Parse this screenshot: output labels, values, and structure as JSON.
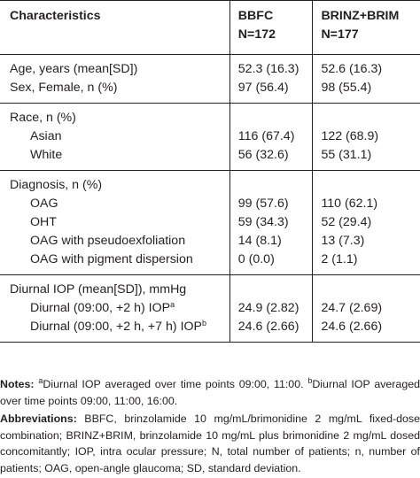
{
  "table": {
    "headers": {
      "characteristics": "Characteristics",
      "bbfc": [
        "BBFC",
        "N=172"
      ],
      "brinz": [
        "BRINZ+BRIM",
        "N=177"
      ]
    },
    "groups": [
      {
        "rows": [
          {
            "label": "Age, years (mean[SD])",
            "bbfc": "52.3 (16.3)",
            "brinz": "52.6 (16.3)"
          },
          {
            "label": "Sex, Female, n (%)",
            "bbfc": "97 (56.4)",
            "brinz": "98 (55.4)"
          }
        ]
      },
      {
        "title": "Race, n (%)",
        "rows": [
          {
            "label": "Asian",
            "bbfc": "116 (67.4)",
            "brinz": "122 (68.9)"
          },
          {
            "label": "White",
            "bbfc": "56 (32.6)",
            "brinz": "55 (31.1)"
          }
        ]
      },
      {
        "title": "Diagnosis, n (%)",
        "rows": [
          {
            "label": "OAG",
            "bbfc": "99 (57.6)",
            "brinz": "110 (62.1)"
          },
          {
            "label": "OHT",
            "bbfc": "59 (34.3)",
            "brinz": "52 (29.4)"
          },
          {
            "label": "OAG with pseudoexfoliation",
            "bbfc": "14 (8.1)",
            "brinz": "13 (7.3)"
          },
          {
            "label": "OAG with pigment dispersion",
            "bbfc": "0 (0.0)",
            "brinz": "2 (1.1)"
          }
        ]
      },
      {
        "title": "Diurnal IOP (mean[SD]), mmHg",
        "rows": [
          {
            "label": "Diurnal (09:00, +2 h) IOP",
            "sup": "a",
            "bbfc": "24.9 (2.82)",
            "brinz": "24.7 (2.69)"
          },
          {
            "label": "Diurnal (09:00, +2 h, +7 h) IOP",
            "sup": "b",
            "bbfc": "24.6 (2.66)",
            "brinz": "24.6 (2.66)"
          }
        ]
      }
    ]
  },
  "notes": {
    "notes_label": "Notes:",
    "note_a_sup": "a",
    "note_a": "Diurnal IOP averaged over time points 09:00, 11:00. ",
    "note_b_sup": "b",
    "note_b": "Diurnal IOP averaged over time points 09:00, 11:00, 16:00.",
    "abbrev_label": "Abbreviations:",
    "abbrev": " BBFC, brinzolamide 10 mg/mL/brimonidine 2 mg/mL fixed-dose combination; BRINZ+BRIM, brinzolamide 10 mg/mL plus brimonidine 2 mg/mL dosed concomitantly; IOP, intra ocular pressure; N, total number of patients; n, number of patients; OAG, open-angle glaucoma; SD, standard deviation."
  }
}
